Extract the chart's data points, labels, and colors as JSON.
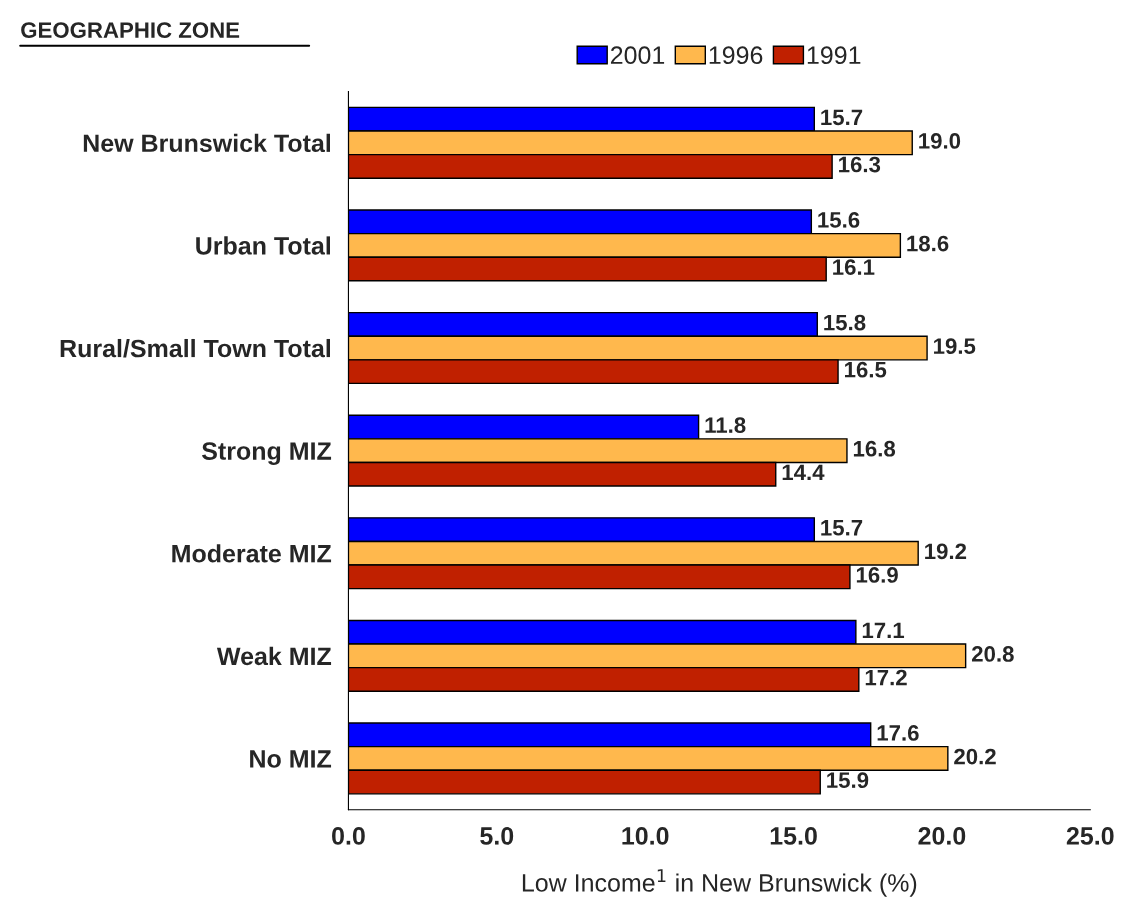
{
  "chart_data": {
    "type": "bar",
    "orientation": "horizontal",
    "title": "GEOGRAPHIC ZONE",
    "xlabel": "Low Income$^{1}$ in New Brunswick (%)",
    "categories": [
      "New Brunswick Total",
      "Urban Total",
      "Rural/Small Town Total",
      "Strong MIZ",
      "Moderate MIZ",
      "Weak MIZ",
      "No MIZ"
    ],
    "series": [
      {
        "name": "2001",
        "color": "#0000ff",
        "values": [
          15.7,
          15.6,
          15.8,
          11.8,
          15.7,
          17.1,
          17.6
        ],
        "value_labels": [
          "15.7",
          "15.6",
          "15.8",
          "11.8",
          "15.7",
          "17.1",
          "17.6"
        ]
      },
      {
        "name": "1996",
        "color": "#ffb84d",
        "values": [
          19.0,
          18.6,
          19.5,
          16.8,
          19.2,
          20.8,
          20.2
        ],
        "value_labels": [
          "19.0",
          "18.6",
          "19.5",
          "16.8",
          "19.2",
          "20.8",
          "20.2"
        ]
      },
      {
        "name": "1991",
        "color": "#c02000",
        "values": [
          16.3,
          16.1,
          16.5,
          14.4,
          16.9,
          17.2,
          15.9
        ],
        "value_labels": [
          "16.3",
          "16.1",
          "16.5",
          "14.4",
          "16.9",
          "17.2",
          "15.9"
        ]
      }
    ],
    "xlim": [
      0,
      25
    ],
    "xticks": [
      {
        "value": 0,
        "label": "0.0"
      },
      {
        "value": 5,
        "label": "5.0"
      },
      {
        "value": 10,
        "label": "10.0"
      },
      {
        "value": 15,
        "label": "15.0"
      },
      {
        "value": 20,
        "label": "20.0"
      },
      {
        "value": 25,
        "label": "25.0"
      }
    ],
    "legend": "top",
    "grid": false
  }
}
